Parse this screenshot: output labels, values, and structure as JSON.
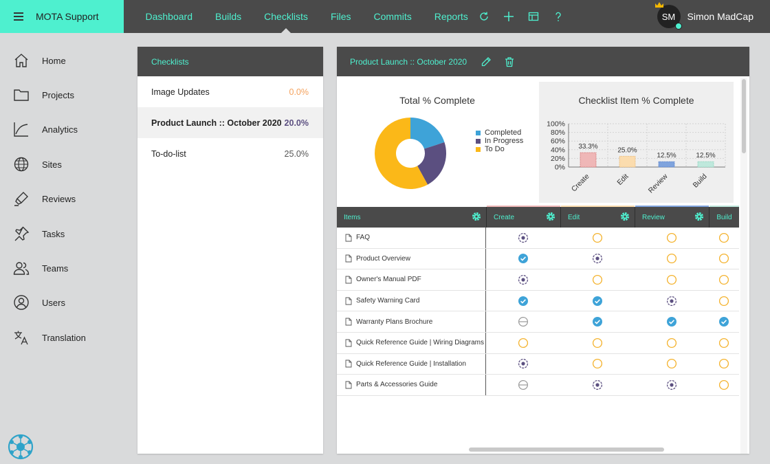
{
  "app": {
    "brand": "MOTA Support",
    "nav": [
      {
        "label": "Dashboard"
      },
      {
        "label": "Builds"
      },
      {
        "label": "Checklists",
        "active": true
      },
      {
        "label": "Files"
      },
      {
        "label": "Commits"
      },
      {
        "label": "Reports"
      }
    ],
    "nav_icons": [
      "refresh-icon",
      "plus-icon",
      "layout-icon",
      "help-icon"
    ],
    "user": {
      "initials": "SM",
      "name": "Simon MadCap"
    }
  },
  "sidebar": {
    "items": [
      {
        "label": "Home",
        "icon": "home-icon"
      },
      {
        "label": "Projects",
        "icon": "folder-icon"
      },
      {
        "label": "Analytics",
        "icon": "analytics-icon"
      },
      {
        "label": "Sites",
        "icon": "globe-icon"
      },
      {
        "label": "Reviews",
        "icon": "highlighter-icon"
      },
      {
        "label": "Tasks",
        "icon": "pin-icon"
      },
      {
        "label": "Teams",
        "icon": "people-icon"
      },
      {
        "label": "Users",
        "icon": "user-icon"
      },
      {
        "label": "Translation",
        "icon": "translate-icon"
      }
    ]
  },
  "checklists": {
    "header": "Checklists",
    "items": [
      {
        "name": "Image Updates",
        "percent": "0.0%",
        "color": "#f5a25d"
      },
      {
        "name": "Product Launch :: October 2020",
        "percent": "20.0%",
        "selected": true,
        "color": "#5b4f80"
      },
      {
        "name": "To-do-list",
        "percent": "25.0%",
        "color": "#555555"
      }
    ]
  },
  "detail": {
    "title": "Product Launch :: October 2020",
    "head_icons": [
      "edit-icon",
      "trash-icon"
    ]
  },
  "colors": {
    "accent": "#4ef0cf",
    "header_bg": "#4a4a4a",
    "completed": "#3ea3d8",
    "in_progress": "#5b4f80",
    "to_do": "#fbb818",
    "check": "#3ea3d8",
    "todo_ring": "#f4b22c"
  },
  "chart_data": [
    {
      "type": "pie",
      "donut": true,
      "title": "Total % Complete",
      "categories": [
        "Completed",
        "In Progress",
        "To Do"
      ],
      "values": [
        20,
        22,
        58
      ],
      "colors": [
        "#3ea3d8",
        "#5b4f80",
        "#fbb818"
      ],
      "legend": "right"
    },
    {
      "type": "bar",
      "title": "Checklist Item % Complete",
      "categories": [
        "Create",
        "Edit",
        "Review",
        "Build"
      ],
      "values": [
        33.3,
        25.0,
        12.5,
        12.5
      ],
      "labels": [
        "33.3%",
        "25.0%",
        "12.5%",
        "12.5%"
      ],
      "colors": [
        "#efb7b7",
        "#fbdcae",
        "#7fa3dd",
        "#bfe8dc"
      ],
      "edge_colors": [
        "#d06b6b",
        "#e8b46e",
        "#4e78c6",
        "#7fcfb7"
      ],
      "ylim": [
        0,
        100
      ],
      "yticks": [
        "0%",
        "20%",
        "40%",
        "60%",
        "80%",
        "100%"
      ],
      "grid": true
    }
  ],
  "grid": {
    "columns": [
      {
        "label": "Items"
      },
      {
        "label": "Create",
        "stripe": "#efb7b7"
      },
      {
        "label": "Edit",
        "stripe": "#fbdcae"
      },
      {
        "label": "Review",
        "stripe": "#7fa3dd"
      },
      {
        "label": "Build",
        "stripe": "#bfe8dc"
      }
    ],
    "rows": [
      {
        "name": "FAQ",
        "states": [
          "progress",
          "todo",
          "todo",
          "todo"
        ]
      },
      {
        "name": "Product Overview",
        "states": [
          "done",
          "progress",
          "todo",
          "todo"
        ]
      },
      {
        "name": "Owner's Manual PDF",
        "states": [
          "progress",
          "todo",
          "todo",
          "todo"
        ]
      },
      {
        "name": "Safety Warning Card",
        "states": [
          "done",
          "done",
          "progress",
          "todo"
        ]
      },
      {
        "name": "Warranty Plans Brochure",
        "states": [
          "na",
          "done",
          "done",
          "done"
        ]
      },
      {
        "name": "Quick Reference Guide | Wiring Diagrams",
        "states": [
          "todo",
          "todo",
          "todo",
          "todo"
        ]
      },
      {
        "name": "Quick Reference Guide | Installation",
        "states": [
          "progress",
          "todo",
          "todo",
          "todo"
        ]
      },
      {
        "name": "Parts & Accessories Guide",
        "states": [
          "na",
          "progress",
          "progress",
          "todo"
        ]
      }
    ]
  }
}
